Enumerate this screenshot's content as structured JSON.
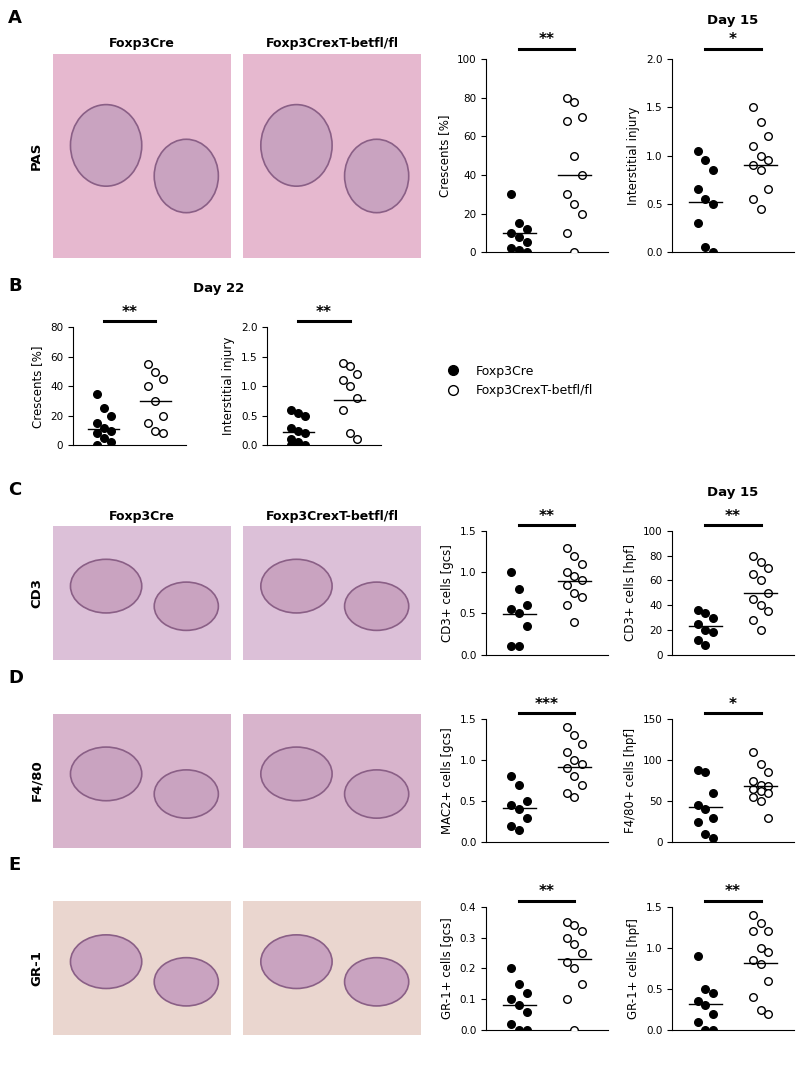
{
  "chart_data": [
    {
      "type": "strip",
      "ylabel": "Crescents [%]",
      "ylim": [
        0,
        100
      ],
      "yticks": [
        0,
        20,
        40,
        60,
        80,
        100
      ],
      "tick_labels": "y",
      "significance": "**",
      "series": [
        {
          "color": "#000000",
          "marker": "filled",
          "values": [
            30,
            15,
            12,
            10,
            8,
            5,
            2,
            1,
            0
          ],
          "mean": 10
        },
        {
          "color": "#000000",
          "marker": "open",
          "values": [
            80,
            78,
            70,
            68,
            50,
            40,
            30,
            25,
            20,
            10,
            0
          ],
          "mean": 40
        }
      ]
    },
    {
      "type": "strip",
      "ylabel": "Interstitial injury",
      "ylim": [
        0,
        2.0
      ],
      "yticks": [
        {
          "value": 0,
          "label": "0.0"
        },
        {
          "value": 0.5,
          "label": "0.5"
        },
        {
          "value": 1.0,
          "label": "1.0"
        },
        {
          "value": 1.5,
          "label": "1.5"
        },
        {
          "value": 2.0,
          "label": "2.0"
        }
      ],
      "tick_labels": "y",
      "significance": "*",
      "series": [
        {
          "color": "#000000",
          "marker": "filled",
          "values": [
            1.05,
            0.95,
            0.85,
            0.65,
            0.55,
            0.5,
            0.3,
            0.05,
            0.0
          ],
          "mean": 0.52
        },
        {
          "color": "#000000",
          "marker": "open",
          "values": [
            1.5,
            1.35,
            1.2,
            1.1,
            1.0,
            0.95,
            0.9,
            0.85,
            0.65,
            0.55,
            0.45
          ],
          "mean": 0.9
        }
      ]
    },
    {
      "type": "strip",
      "ylabel": "Crescents [%]",
      "ylim": [
        0,
        80
      ],
      "yticks": [
        0,
        20,
        40,
        60,
        80
      ],
      "tick_labels": "y",
      "significance": "**",
      "series": [
        {
          "color": "#000000",
          "marker": "filled",
          "values": [
            35,
            25,
            20,
            15,
            12,
            10,
            8,
            5,
            2,
            0
          ],
          "mean": 11
        },
        {
          "color": "#000000",
          "marker": "open",
          "values": [
            55,
            50,
            45,
            40,
            30,
            20,
            15,
            10,
            8
          ],
          "mean": 30
        }
      ]
    },
    {
      "type": "strip",
      "ylabel": "Interstitial injury",
      "ylim": [
        0,
        2.0
      ],
      "yticks": [
        {
          "value": 0,
          "label": "0.0"
        },
        {
          "value": 0.5,
          "label": "0.5"
        },
        {
          "value": 1.0,
          "label": "1.0"
        },
        {
          "value": 1.5,
          "label": "1.5"
        },
        {
          "value": 2.0,
          "label": "2.0"
        }
      ],
      "tick_labels": "y",
      "significance": "**",
      "series": [
        {
          "color": "#000000",
          "marker": "filled",
          "values": [
            0.6,
            0.55,
            0.5,
            0.3,
            0.25,
            0.2,
            0.1,
            0.05,
            0.0,
            0.0,
            0.0
          ],
          "mean": 0.22
        },
        {
          "color": "#000000",
          "marker": "open",
          "values": [
            1.4,
            1.35,
            1.2,
            1.1,
            1.0,
            0.8,
            0.6,
            0.2,
            0.1
          ],
          "mean": 0.77
        }
      ]
    },
    {
      "type": "strip",
      "ylabel": "CD3+ cells [gcs]",
      "ylim": [
        0,
        1.5
      ],
      "yticks": [
        {
          "value": 0,
          "label": "0.0"
        },
        {
          "value": 0.5,
          "label": "0.5"
        },
        {
          "value": 1.0,
          "label": "1.0"
        },
        {
          "value": 1.5,
          "label": "1.5"
        }
      ],
      "tick_labels": "y",
      "significance": "**",
      "series": [
        {
          "color": "#000000",
          "marker": "filled",
          "values": [
            1.0,
            0.8,
            0.6,
            0.55,
            0.5,
            0.35,
            0.1,
            0.1
          ],
          "mean": 0.49
        },
        {
          "color": "#000000",
          "marker": "open",
          "values": [
            1.3,
            1.2,
            1.1,
            1.0,
            0.95,
            0.9,
            0.85,
            0.75,
            0.7,
            0.6,
            0.4
          ],
          "mean": 0.89
        }
      ]
    },
    {
      "type": "strip",
      "ylabel": "CD3+ cells [hpf]",
      "ylim": [
        0,
        100
      ],
      "yticks": [
        0,
        20,
        40,
        60,
        80,
        100
      ],
      "tick_labels": "y",
      "significance": "**",
      "series": [
        {
          "color": "#000000",
          "marker": "filled",
          "values": [
            36,
            34,
            30,
            25,
            20,
            18,
            12,
            8
          ],
          "mean": 23
        },
        {
          "color": "#000000",
          "marker": "open",
          "values": [
            80,
            75,
            70,
            65,
            60,
            50,
            45,
            40,
            35,
            28,
            20
          ],
          "mean": 50
        }
      ]
    },
    {
      "type": "strip",
      "ylabel": "MAC2+ cells [gcs]",
      "ylim": [
        0,
        1.5
      ],
      "yticks": [
        {
          "value": 0,
          "label": "0.0"
        },
        {
          "value": 0.5,
          "label": "0.5"
        },
        {
          "value": 1.0,
          "label": "1.0"
        },
        {
          "value": 1.5,
          "label": "1.5"
        }
      ],
      "tick_labels": "y",
      "significance": "***",
      "series": [
        {
          "color": "#000000",
          "marker": "filled",
          "values": [
            0.8,
            0.7,
            0.5,
            0.45,
            0.4,
            0.3,
            0.2,
            0.15
          ],
          "mean": 0.42
        },
        {
          "color": "#000000",
          "marker": "open",
          "values": [
            1.4,
            1.3,
            1.2,
            1.1,
            1.0,
            0.95,
            0.9,
            0.8,
            0.7,
            0.6,
            0.55
          ],
          "mean": 0.92
        }
      ]
    },
    {
      "type": "strip",
      "ylabel": "F4/80+ cells [hpf]",
      "ylim": [
        0,
        150
      ],
      "yticks": [
        0,
        50,
        100,
        150
      ],
      "tick_labels": "y",
      "significance": "*",
      "series": [
        {
          "color": "#000000",
          "marker": "filled",
          "values": [
            88,
            85,
            60,
            45,
            40,
            30,
            25,
            10,
            5
          ],
          "mean": 43
        },
        {
          "color": "#000000",
          "marker": "open",
          "values": [
            110,
            95,
            85,
            75,
            70,
            68,
            65,
            62,
            60,
            55,
            50,
            30
          ],
          "mean": 69
        }
      ]
    },
    {
      "type": "strip",
      "ylabel": "GR-1+ cells [gcs]",
      "ylim": [
        0,
        0.4
      ],
      "yticks": [
        {
          "value": 0,
          "label": "0.0"
        },
        {
          "value": 0.1,
          "label": "0.1"
        },
        {
          "value": 0.2,
          "label": "0.2"
        },
        {
          "value": 0.3,
          "label": "0.3"
        },
        {
          "value": 0.4,
          "label": "0.4"
        }
      ],
      "tick_labels": "y",
      "significance": "**",
      "series": [
        {
          "color": "#000000",
          "marker": "filled",
          "values": [
            0.2,
            0.15,
            0.12,
            0.1,
            0.08,
            0.06,
            0.02,
            0.0,
            0.0
          ],
          "mean": 0.08
        },
        {
          "color": "#000000",
          "marker": "open",
          "values": [
            0.35,
            0.34,
            0.32,
            0.3,
            0.28,
            0.25,
            0.22,
            0.2,
            0.15,
            0.1,
            0.0
          ],
          "mean": 0.23
        }
      ]
    },
    {
      "type": "strip",
      "ylabel": "GR-1+ cells [hpf]",
      "ylim": [
        0,
        1.5
      ],
      "yticks": [
        {
          "value": 0,
          "label": "0.0"
        },
        {
          "value": 0.5,
          "label": "0.5"
        },
        {
          "value": 1.0,
          "label": "1.0"
        },
        {
          "value": 1.5,
          "label": "1.5"
        }
      ],
      "tick_labels": "y",
      "significance": "**",
      "series": [
        {
          "color": "#000000",
          "marker": "filled",
          "values": [
            0.9,
            0.5,
            0.45,
            0.35,
            0.3,
            0.2,
            0.1,
            0.0,
            0.0
          ],
          "mean": 0.32
        },
        {
          "color": "#000000",
          "marker": "open",
          "values": [
            1.4,
            1.3,
            1.2,
            1.2,
            1.0,
            0.95,
            0.85,
            0.8,
            0.6,
            0.4,
            0.25,
            0.2
          ],
          "mean": 0.82
        }
      ]
    }
  ],
  "legend": [
    {
      "name": "Foxp3Cre",
      "marker": "filled",
      "color": "#000000"
    },
    {
      "name": "Foxp3CrexT-betfl/fl",
      "marker": "open",
      "color": "#000000"
    }
  ],
  "panels": [
    {
      "letter": "A",
      "day": "Day 15",
      "row_label": "PAS",
      "image_titles": [
        "Foxp3Cre",
        "Foxp3CrexT-betfl/fl"
      ]
    },
    {
      "letter": "B",
      "day": "Day 22"
    },
    {
      "letter": "C",
      "day": "Day 15",
      "row_label": "CD3",
      "image_titles": [
        "Foxp3Cre",
        "Foxp3CrexT-betfl/fl"
      ]
    },
    {
      "letter": "D",
      "row_label": "F4/80"
    },
    {
      "letter": "E",
      "row_label": "GR-1"
    }
  ]
}
